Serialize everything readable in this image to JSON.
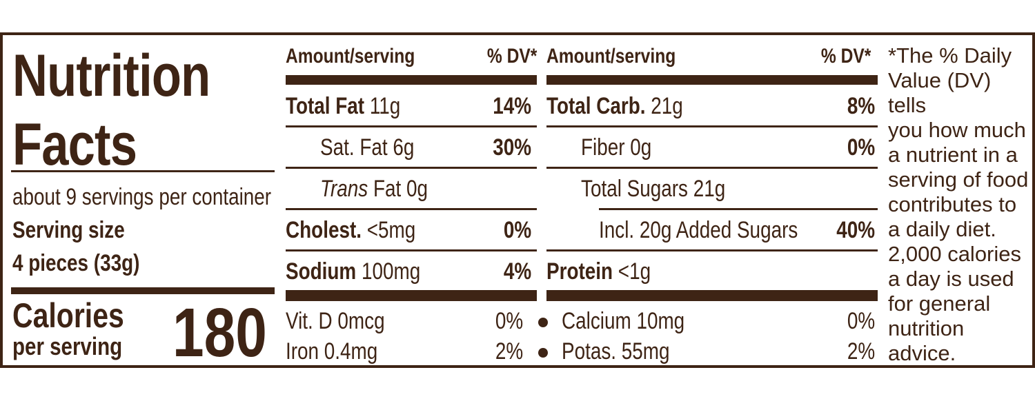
{
  "panel": {
    "title_line1": "Nutrition",
    "title_line2": "Facts",
    "servings_per_container": "about 9 servings per container",
    "serving_size_label": "Serving size",
    "serving_size_value": "4 pieces (33g)",
    "calories_label": "Calories",
    "calories_sub": "per serving",
    "calories_value": "180"
  },
  "left_column": {
    "header_amount": "Amount/serving",
    "header_dv": "% DV*",
    "rows": [
      {
        "name": "Total Fat",
        "amount": "11g",
        "dv": "14%"
      },
      {
        "name": "Sat. Fat",
        "amount": "6g",
        "dv": "30%"
      },
      {
        "name": "Trans",
        "amount": "Fat 0g",
        "dv": ""
      },
      {
        "name": "Cholest.",
        "amount": "<5mg",
        "dv": "0%"
      },
      {
        "name": "Sodium",
        "amount": "100mg",
        "dv": "4%"
      }
    ]
  },
  "right_column": {
    "header_amount": "Amount/serving",
    "header_dv": "% DV*",
    "rows": [
      {
        "name": "Total Carb.",
        "amount": "21g",
        "dv": "8%"
      },
      {
        "name": "Fiber",
        "amount": "0g",
        "dv": "0%"
      },
      {
        "name": "Total Sugars",
        "amount": "21g",
        "dv": ""
      },
      {
        "name": "Incl. 20g Added Sugars",
        "amount": "",
        "dv": "40%"
      },
      {
        "name": "Protein",
        "amount": "<1g",
        "dv": ""
      }
    ]
  },
  "micros": [
    {
      "name": "Vit. D 0mcg",
      "dv": "0%"
    },
    {
      "name": "Calcium 10mg",
      "dv": "0%"
    },
    {
      "name": "Iron 0.4mg",
      "dv": "2%"
    },
    {
      "name": "Potas. 55mg",
      "dv": "2%"
    }
  ],
  "footnote": "*The % Daily\nValue (DV) tells\nyou how much\na nutrient in a\nserving of food\ncontributes to\na daily diet.\n2,000 calories\na day is used\nfor general\nnutrition\nadvice.",
  "colors": {
    "ink": "#3e2415",
    "background": "#ffffff"
  }
}
